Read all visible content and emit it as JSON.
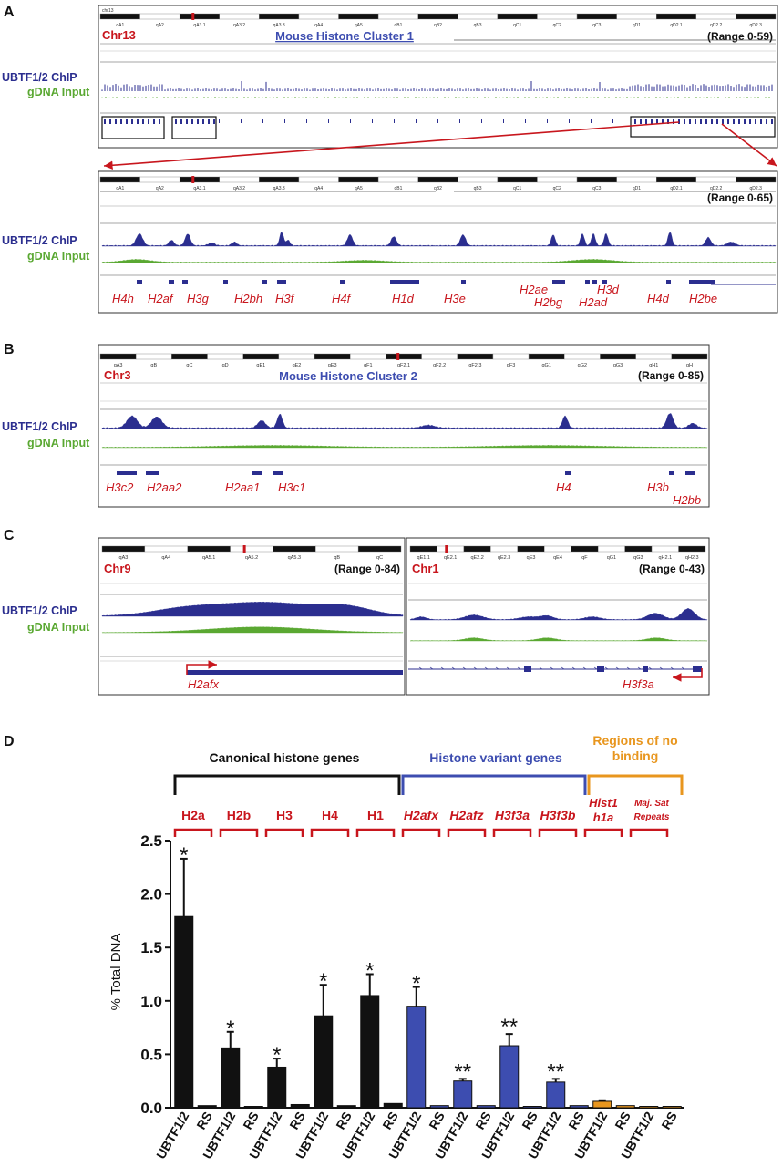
{
  "panel_letters": [
    "A",
    "B",
    "C",
    "D"
  ],
  "track_labels": {
    "chip": "UBTF1/2 ChIP",
    "input": "gDNA Input"
  },
  "colors": {
    "chip": "#2b2e8f",
    "input": "#5aa832",
    "red": "#c8161d",
    "black": "#111111",
    "variant": "#3d4db0",
    "orange": "#e8961e"
  },
  "panel_a": {
    "top": {
      "chromosome": "Chr13",
      "title": "Mouse Histone Cluster 1",
      "range": "(Range 0-59)",
      "ideogram_tag": "chr13",
      "bands": [
        "qA1",
        "qA2",
        "qA3.1",
        "qA3.2",
        "qA3.3",
        "qA4",
        "qA5",
        "qB1",
        "qB2",
        "qB3",
        "qC1",
        "qC2",
        "qC3",
        "qD1",
        "qD2.1",
        "qD2.2",
        "qD2.3"
      ]
    },
    "zoom": {
      "range": "(Range 0-65)",
      "bands": [
        "qA1",
        "qA2",
        "qA3.1",
        "qA3.2",
        "qA3.3",
        "qA4",
        "qA5",
        "qB1",
        "qB2",
        "qB3",
        "qC1",
        "qC2",
        "qC3",
        "qD1",
        "qD2.1",
        "qD2.2",
        "qD2.3"
      ],
      "genes": [
        "H4h",
        "H2af",
        "H3g",
        "H2bh",
        "H3f",
        "H4f",
        "H1d",
        "H3e",
        "H2ae",
        "H2bg",
        "H2ad",
        "H3d",
        "H4d",
        "H2be"
      ]
    }
  },
  "panel_b": {
    "chromosome": "Chr3",
    "title": "Mouse Histone Cluster 2",
    "range": "(Range 0-85)",
    "bands": [
      "qA3",
      "qB",
      "qC",
      "qD",
      "qE1",
      "qE2",
      "qE3",
      "qF1",
      "qF2.1",
      "qF2.2",
      "qF2.3",
      "qF3",
      "qG1",
      "qG2",
      "qG3",
      "qH1",
      "qH"
    ],
    "genes": [
      "H3c2",
      "H2aa2",
      "H2aa1",
      "H3c1",
      "H4",
      "H3b",
      "H2bb"
    ]
  },
  "panel_c": {
    "left": {
      "chromosome": "Chr9",
      "range": "(Range 0-84)",
      "bands": [
        "qA3",
        "qA4",
        "qA5.1",
        "qA5.2",
        "qA5.3",
        "qB",
        "qC"
      ],
      "gene": "H2afx"
    },
    "right": {
      "chromosome": "Chr1",
      "range": "(Range 0-43)",
      "bands": [
        "qE1.1",
        "qE2.1",
        "qE2.2",
        "qE2.3",
        "qE3",
        "qE4",
        "qF",
        "qG1",
        "qG3",
        "qH2.1",
        "qH2.3"
      ],
      "gene": "H3f3a"
    }
  },
  "panel_d": {
    "group_headers": {
      "canonical": "Canonical histone genes",
      "variant": "Histone variant genes",
      "nobinding": "Regions of no binding"
    },
    "gene_labels": [
      "H2a",
      "H2b",
      "H3",
      "H4",
      "H1",
      "H2afx",
      "H2afz",
      "H3f3a",
      "H3f3b",
      "Hist1 h1a",
      "Maj. Sat Repeats"
    ],
    "chart_data": {
      "type": "bar",
      "ylabel": "% Total DNA",
      "ylim": [
        0,
        2.5
      ],
      "yticks": [
        "0.0",
        "0.5",
        "1.0",
        "1.5",
        "2.0",
        "2.5"
      ],
      "categories": [
        "UBTF1/2",
        "RS",
        "UBTF1/2",
        "RS",
        "UBTF1/2",
        "RS",
        "UBTF1/2",
        "RS",
        "UBTF1/2",
        "RS",
        "UBTF1/2",
        "RS",
        "UBTF1/2",
        "RS",
        "UBTF1/2",
        "RS",
        "UBTF1/2",
        "RS",
        "UBTF1/2",
        "RS",
        "UBTF1/2",
        "RS"
      ],
      "values": [
        1.79,
        0.02,
        0.56,
        0.01,
        0.38,
        0.03,
        0.86,
        0.02,
        1.05,
        0.04,
        0.95,
        0.02,
        0.25,
        0.02,
        0.58,
        0.01,
        0.24,
        0.02,
        0.06,
        0.02,
        0.01,
        0.01
      ],
      "errors": [
        0.54,
        0.0,
        0.15,
        0.0,
        0.08,
        0.0,
        0.29,
        0.0,
        0.2,
        0.0,
        0.18,
        0.0,
        0.02,
        0.0,
        0.11,
        0.0,
        0.03,
        0.0,
        0.01,
        0.0,
        0.0,
        0.0
      ],
      "bar_colors": [
        "#111111",
        "#111111",
        "#111111",
        "#111111",
        "#111111",
        "#111111",
        "#111111",
        "#111111",
        "#111111",
        "#111111",
        "#3d4db0",
        "#3d4db0",
        "#3d4db0",
        "#3d4db0",
        "#3d4db0",
        "#3d4db0",
        "#3d4db0",
        "#3d4db0",
        "#e8961e",
        "#e8961e",
        "#e8961e",
        "#e8961e"
      ],
      "significance": [
        "*",
        "",
        "*",
        "",
        "*",
        "",
        "*",
        "",
        "*",
        "",
        "*",
        "",
        "**",
        "",
        "**",
        "",
        "**",
        "",
        "",
        "",
        "",
        ""
      ]
    }
  }
}
